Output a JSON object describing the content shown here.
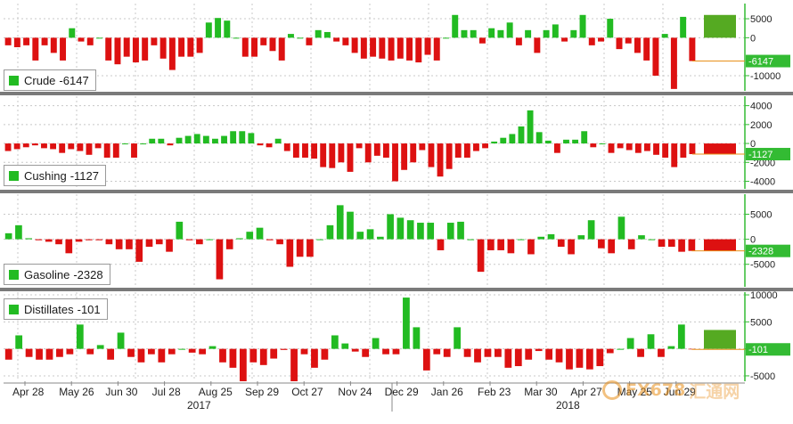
{
  "chart_data": [
    {
      "type": "bar",
      "legend_label": "Crude",
      "latest_value": "-6147",
      "ylim": [
        -14000,
        9000
      ],
      "yticks": [
        "5000",
        "0",
        "-10000"
      ],
      "values": [
        -2000,
        -2500,
        -2000,
        -6000,
        -2000,
        -4000,
        -6000,
        2500,
        -1000,
        -2000,
        0,
        -6000,
        -7000,
        -5000,
        -6500,
        -6000,
        -2000,
        -5500,
        -8500,
        -5000,
        -5000,
        -4000,
        4000,
        5200,
        4500,
        0,
        -5000,
        -5000,
        -2000,
        -3500,
        -6000,
        1000,
        0,
        -2000,
        2000,
        1500,
        -1000,
        -2000,
        -4000,
        -5500,
        -5000,
        -5500,
        -6000,
        -5500,
        -6000,
        -6500,
        -4500,
        -6000,
        0,
        6000,
        2000,
        2000,
        -1500,
        2500,
        2000,
        4000,
        -2000,
        2000,
        -4000,
        2000,
        3500,
        -1000,
        2000,
        6000,
        -2000,
        -1000,
        5000,
        -3000,
        -1500,
        -4000,
        -6000,
        -10000,
        1000,
        -13500,
        5500,
        -6147
      ],
      "highlight": 6000
    },
    {
      "type": "bar",
      "legend_label": "Cushing",
      "latest_value": "-1127",
      "ylim": [
        -4800,
        5000
      ],
      "yticks": [
        "4000",
        "2000",
        "0",
        "-2000",
        "-4000"
      ],
      "values": [
        -800,
        -600,
        -400,
        -200,
        -500,
        -600,
        -1000,
        -600,
        -800,
        -1200,
        -500,
        -1500,
        -1500,
        0,
        -1500,
        0,
        500,
        500,
        -200,
        600,
        800,
        1000,
        800,
        500,
        800,
        1300,
        1300,
        1100,
        -200,
        -400,
        500,
        -800,
        -1500,
        -1500,
        -1600,
        -2500,
        -2600,
        -2000,
        -3000,
        -500,
        -2000,
        -1300,
        -1500,
        -4000,
        -2800,
        -2000,
        -700,
        -2500,
        -3500,
        -2700,
        -1500,
        -1500,
        -800,
        -500,
        200,
        600,
        1000,
        1800,
        3500,
        1200,
        300,
        -1000,
        400,
        400,
        1300,
        -400,
        0,
        -1000,
        -500,
        -700,
        -1000,
        -800,
        -1200,
        -1500,
        -2500,
        -1500,
        -1127
      ],
      "highlight": -1127
    },
    {
      "type": "bar",
      "legend_label": "Gasoline",
      "latest_value": "-2328",
      "ylim": [
        -9500,
        9000
      ],
      "yticks": [
        "5000",
        "0",
        "-5000"
      ],
      "values": [
        1200,
        2800,
        200,
        -200,
        -500,
        -1000,
        -2800,
        -500,
        -200,
        -200,
        -1000,
        -2000,
        -2000,
        -4500,
        -1500,
        -1000,
        -2500,
        3500,
        -200,
        -1000,
        0,
        -8000,
        -2000,
        200,
        1500,
        2300,
        -200,
        -1000,
        -5500,
        -3500,
        -3500,
        0,
        2800,
        6800,
        5500,
        1500,
        2000,
        500,
        5000,
        4300,
        3800,
        3300,
        3300,
        -2200,
        3300,
        3500,
        0,
        -6500,
        -2200,
        -2200,
        -2800,
        0,
        -3000,
        500,
        1000,
        -1500,
        -3000,
        800,
        3800,
        -1800,
        -2800,
        4500,
        -2000,
        800,
        0,
        -1500,
        -1500,
        -2500,
        -2328
      ],
      "highlight": -2328
    },
    {
      "type": "bar",
      "legend_label": "Distillates",
      "latest_value": "-101",
      "ylim": [
        -6000,
        10500
      ],
      "yticks": [
        "10000",
        "5000",
        "0",
        "-5000"
      ],
      "values": [
        -2000,
        2500,
        -1500,
        -2000,
        -2000,
        -1500,
        -1000,
        4500,
        -1000,
        700,
        -2000,
        3000,
        -1500,
        -2500,
        -1000,
        -2500,
        -1000,
        0,
        -700,
        -1000,
        500,
        -2500,
        -3500,
        -6000,
        -2500,
        -3000,
        -1800,
        -200,
        -6000,
        -1000,
        -3500,
        -2000,
        2500,
        1000,
        -500,
        -1500,
        2000,
        -1000,
        -1000,
        9500,
        4000,
        -4000,
        -1000,
        -1500,
        4000,
        -1500,
        -2500,
        -1500,
        -1500,
        -3500,
        -3200,
        -2000,
        -400,
        -2000,
        -2500,
        -3800,
        -3500,
        -3800,
        -3200,
        -800,
        0,
        2000,
        -1500,
        2700,
        -1500,
        500,
        4500,
        -101
      ],
      "highlight": 3500
    }
  ],
  "x_ticks": [
    "Apr 28",
    "May 26",
    "Jun 30",
    "Jul 28",
    "Aug 25",
    "Sep 29",
    "Oct 27",
    "Nov 24",
    "Dec 29",
    "Jan 26",
    "Feb 23",
    "Mar 30",
    "Apr 27",
    "May 25",
    "Jun 29"
  ],
  "year_labels": [
    "2017",
    "2018"
  ],
  "watermark": {
    "latin": "FX678",
    "chinese": "汇通网"
  },
  "colors": {
    "positive": "#22bb22",
    "negative": "#dd1111",
    "highlight_green": "#55aa22",
    "axis": "#33bb33",
    "separator": "#7a7a7a"
  }
}
